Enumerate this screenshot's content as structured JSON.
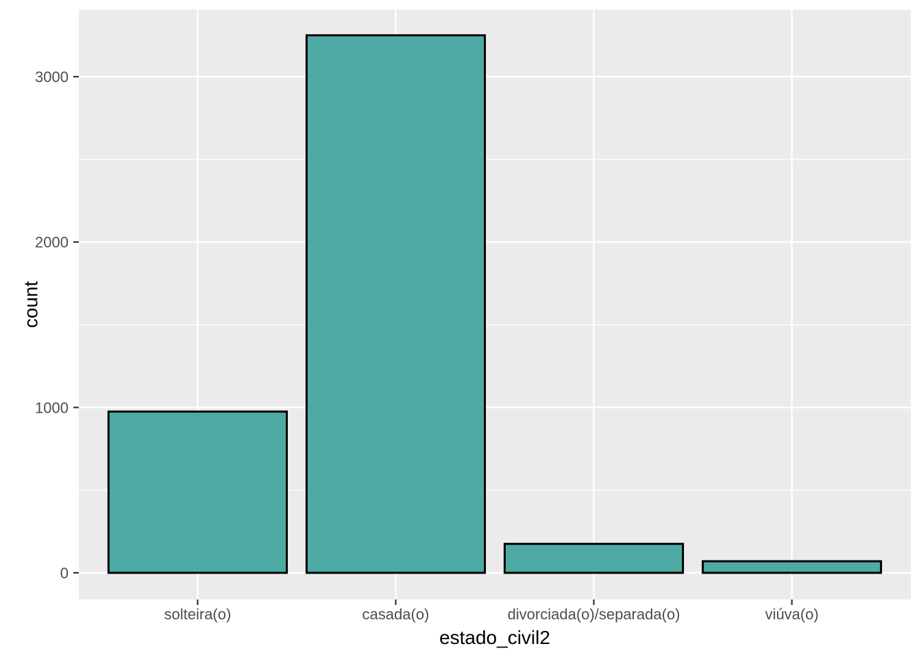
{
  "chart_data": {
    "type": "bar",
    "title": "",
    "xlabel": "estado_civil2",
    "ylabel": "count",
    "categories": [
      "solteira(o)",
      "casada(o)",
      "divorciada(o)/separada(o)",
      "viúva(o)"
    ],
    "values": [
      975,
      3250,
      175,
      70
    ],
    "yticks_major": [
      0,
      1000,
      2000,
      3000
    ],
    "ytick_labels": [
      "0",
      "1000",
      "2000",
      "3000"
    ],
    "yticks_minor": [
      500,
      1500,
      2500
    ],
    "ylim": [
      -162,
      3406
    ],
    "bar_width_fraction": 0.9,
    "grid": "major-and-minor, white on grey panel",
    "legend_position": "none",
    "colors": {
      "bar_fill": "#4DABA4",
      "bar_stroke": "#000000",
      "panel_background": "#EBEBEB",
      "gridline": "#FFFFFF",
      "tick_mark": "#333333",
      "tick_label": "#4D4D4D",
      "axis_title": "#000000",
      "page_background": "#FFFFFF"
    }
  }
}
